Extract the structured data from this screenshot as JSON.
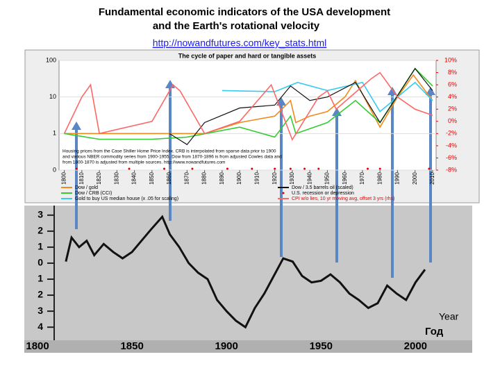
{
  "title": [
    "Fundamental economic indicators of the USA development",
    "and the Earth's rotational velocity"
  ],
  "link": "http://nowandfutures.com/key_stats.html",
  "chart_data": [
    {
      "type": "line",
      "title": "The cycle of paper and hard or tangible assets",
      "log_scale": true,
      "xlim": [
        1797,
        2012
      ],
      "xticks": [
        1800,
        1810,
        1820,
        1830,
        1840,
        1850,
        1860,
        1870,
        1880,
        1890,
        1900,
        1910,
        1920,
        1930,
        1940,
        1950,
        1960,
        1970,
        1980,
        1990,
        2000,
        2010
      ],
      "ylim": [
        0.1,
        100
      ],
      "yticks": [
        {
          "value": 0.1,
          "label": "0"
        },
        1,
        10,
        100
      ],
      "y2lim": [
        -8,
        10
      ],
      "y2ticks": [
        {
          "value": -8,
          "label": "-8%"
        },
        {
          "value": -6,
          "label": "-6%"
        },
        {
          "value": -4,
          "label": "-4%"
        },
        {
          "value": -2,
          "label": "-2%"
        },
        {
          "value": 0,
          "label": "0%"
        },
        {
          "value": 2,
          "label": "2%"
        },
        {
          "value": 4,
          "label": "4%"
        },
        {
          "value": 6,
          "label": "6%"
        },
        {
          "value": 8,
          "label": "8%"
        },
        {
          "value": 10,
          "label": "10%"
        }
      ],
      "annotation": [
        "Housing prices from the Case Shiller Home Price Index. CRB is interpolated from sparse data prior to 1900",
        "and various NBER commodity series from 1900-1955.  Dow from 1870-1896 is from adjusted Cowles data and",
        "from 1800-1870 is adjusted from multiple sources.  http://www.nowandfutures.com"
      ],
      "series": [
        {
          "name": "Dow / gold",
          "color": "#f28a1a",
          "x": [
            1800,
            1820,
            1850,
            1880,
            1900,
            1920,
            1929,
            1932,
            1940,
            1950,
            1960,
            1966,
            1980,
            1990,
            1999,
            2010
          ],
          "values": [
            1,
            1,
            1,
            1,
            2,
            3,
            8,
            2,
            3,
            4,
            10,
            28,
            1.5,
            10,
            40,
            8
          ]
        },
        {
          "name": "Dow / CRB (CCI)",
          "color": "#33cc33",
          "x": [
            1800,
            1820,
            1850,
            1870,
            1900,
            1920,
            1929,
            1932,
            1950,
            1966,
            1980,
            2000,
            2010
          ],
          "values": [
            1,
            0.7,
            0.7,
            0.8,
            1.5,
            0.8,
            3,
            1,
            2,
            8,
            2,
            60,
            20
          ]
        },
        {
          "name": "Gold to buy US median house (x .05 for scaling)",
          "color": "#33ccee",
          "x": [
            1890,
            1920,
            1933,
            1950,
            1970,
            1980,
            2000,
            2010
          ],
          "values": [
            15,
            14,
            25,
            15,
            25,
            4,
            25,
            8
          ]
        },
        {
          "name": "Dow / 3.5 barrels oil (scaled)",
          "color": "#111111",
          "x": [
            1860,
            1870,
            1880,
            1900,
            1920,
            1929,
            1940,
            1950,
            1966,
            1980,
            2000,
            2010
          ],
          "values": [
            1,
            0.5,
            2,
            5,
            6,
            20,
            8,
            10,
            25,
            2,
            60,
            15
          ]
        },
        {
          "name": "U.S. recession or depression",
          "color": "#dd0000",
          "x": [
            1807,
            1837,
            1857,
            1873,
            1893,
            1907,
            1920,
            1929,
            1937,
            1945,
            1973,
            1980,
            2008
          ]
        },
        {
          "name": "CPI w/o lies, 10 yr moving avg, offset 3 yrs (rhs)",
          "color": "#ff6666",
          "axis": "y2",
          "x": [
            1800,
            1810,
            1815,
            1820,
            1850,
            1862,
            1866,
            1880,
            1900,
            1918,
            1930,
            1945,
            1950,
            1955,
            1975,
            1980,
            1990,
            2000,
            2010
          ],
          "values": [
            -2,
            4,
            6,
            -2,
            0,
            6,
            5,
            -2,
            0,
            6,
            -3,
            4,
            5,
            2,
            7,
            8,
            4,
            2,
            1
          ]
        }
      ]
    },
    {
      "type": "line",
      "xlabel": [
        "Year",
        "Год"
      ],
      "xlim": [
        1793,
        2030
      ],
      "xticks": [
        1800,
        1850,
        1900,
        1950,
        2000
      ],
      "ylim": [
        -5.6,
        3.6
      ],
      "yticks": [
        3,
        2,
        1,
        0,
        {
          "value": -1,
          "label": "1"
        },
        {
          "value": -2,
          "label": "2"
        },
        {
          "value": -3,
          "label": "3"
        },
        {
          "value": -4,
          "label": "4"
        }
      ],
      "series": [
        {
          "color": "#111111",
          "x": [
            1815,
            1818,
            1822,
            1826,
            1830,
            1835,
            1840,
            1845,
            1850,
            1855,
            1860,
            1866,
            1870,
            1875,
            1880,
            1885,
            1890,
            1895,
            1900,
            1905,
            1910,
            1915,
            1920,
            1925,
            1930,
            1935,
            1940,
            1945,
            1950,
            1955,
            1960,
            1965,
            1970,
            1975,
            1980,
            1985,
            1990,
            1995,
            2000,
            2005
          ],
          "values": [
            0.1,
            1.6,
            1.0,
            1.4,
            0.5,
            1.2,
            0.7,
            0.3,
            0.7,
            1.4,
            2.1,
            2.9,
            1.8,
            1.0,
            0,
            -0.6,
            -1.0,
            -2.3,
            -3.0,
            -3.6,
            -4.0,
            -2.8,
            -1.9,
            -0.8,
            0.3,
            0.1,
            -0.8,
            -1.2,
            -1.1,
            -0.7,
            -1.2,
            -1.9,
            -2.3,
            -2.8,
            -2.5,
            -1.4,
            -1.9,
            -2.3,
            -1.2,
            -0.4
          ]
        }
      ]
    }
  ]
}
